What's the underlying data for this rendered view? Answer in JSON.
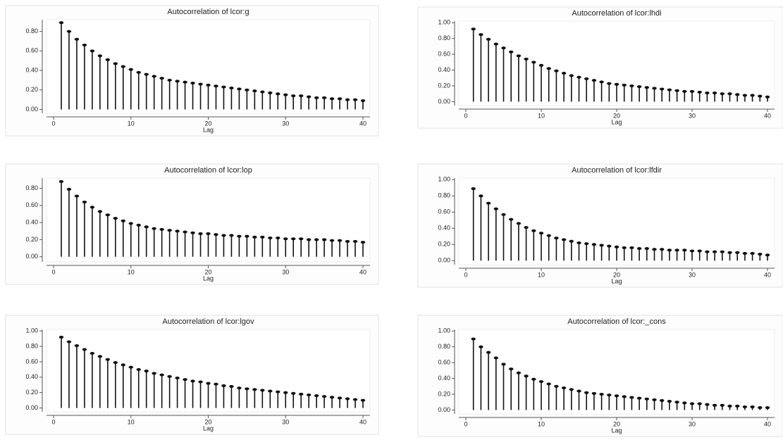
{
  "chart_data": [
    {
      "type": "stem",
      "title": "Autocorrelation of lcor:g",
      "xlabel": "Lag",
      "x": [
        1,
        2,
        3,
        4,
        5,
        6,
        7,
        8,
        9,
        10,
        11,
        12,
        13,
        14,
        15,
        16,
        17,
        18,
        19,
        20,
        21,
        22,
        23,
        24,
        25,
        26,
        27,
        28,
        29,
        30,
        31,
        32,
        33,
        34,
        35,
        36,
        37,
        38,
        39,
        40
      ],
      "values": [
        0.89,
        0.8,
        0.72,
        0.66,
        0.6,
        0.55,
        0.51,
        0.47,
        0.44,
        0.41,
        0.38,
        0.36,
        0.34,
        0.32,
        0.3,
        0.29,
        0.28,
        0.27,
        0.26,
        0.25,
        0.24,
        0.23,
        0.22,
        0.21,
        0.2,
        0.19,
        0.18,
        0.17,
        0.16,
        0.15,
        0.14,
        0.14,
        0.13,
        0.12,
        0.12,
        0.11,
        0.11,
        0.1,
        0.1,
        0.09
      ],
      "xlim": [
        0,
        40
      ],
      "xticks": [
        0,
        10,
        20,
        30,
        40
      ],
      "ylim": [
        -0.04,
        0.92
      ],
      "yticks": [
        {
          "value": 0,
          "label": "0.00"
        },
        {
          "value": 0.2,
          "label": "0.20"
        },
        {
          "value": 0.4,
          "label": "0.40"
        },
        {
          "value": 0.6,
          "label": "0.60"
        },
        {
          "value": 0.8,
          "label": "0.80"
        }
      ],
      "color": "#111111"
    },
    {
      "type": "stem",
      "title": "Autocorrelation of lcor:lhdi",
      "xlabel": "Lag",
      "x": [
        1,
        2,
        3,
        4,
        5,
        6,
        7,
        8,
        9,
        10,
        11,
        12,
        13,
        14,
        15,
        16,
        17,
        18,
        19,
        20,
        21,
        22,
        23,
        24,
        25,
        26,
        27,
        28,
        29,
        30,
        31,
        32,
        33,
        34,
        35,
        36,
        37,
        38,
        39,
        40
      ],
      "values": [
        0.92,
        0.85,
        0.79,
        0.73,
        0.68,
        0.63,
        0.58,
        0.54,
        0.5,
        0.46,
        0.42,
        0.39,
        0.36,
        0.33,
        0.31,
        0.29,
        0.27,
        0.25,
        0.23,
        0.22,
        0.21,
        0.2,
        0.19,
        0.18,
        0.17,
        0.16,
        0.15,
        0.14,
        0.13,
        0.13,
        0.12,
        0.11,
        0.11,
        0.1,
        0.1,
        0.09,
        0.08,
        0.08,
        0.07,
        0.06
      ],
      "xlim": [
        0,
        40
      ],
      "xticks": [
        0,
        10,
        20,
        30,
        40
      ],
      "ylim": [
        -0.05,
        1.02
      ],
      "yticks": [
        {
          "value": 0,
          "label": "0.00"
        },
        {
          "value": 0.2,
          "label": "0.20"
        },
        {
          "value": 0.4,
          "label": "0.40"
        },
        {
          "value": 0.6,
          "label": "0.60"
        },
        {
          "value": 0.8,
          "label": "0.80"
        },
        {
          "value": 1,
          "label": "1.00"
        }
      ],
      "color": "#111111"
    },
    {
      "type": "stem",
      "title": "Autocorrelation of lcor:lop",
      "xlabel": "Lag",
      "x": [
        1,
        2,
        3,
        4,
        5,
        6,
        7,
        8,
        9,
        10,
        11,
        12,
        13,
        14,
        15,
        16,
        17,
        18,
        19,
        20,
        21,
        22,
        23,
        24,
        25,
        26,
        27,
        28,
        29,
        30,
        31,
        32,
        33,
        34,
        35,
        36,
        37,
        38,
        39,
        40
      ],
      "values": [
        0.88,
        0.79,
        0.71,
        0.64,
        0.58,
        0.53,
        0.49,
        0.45,
        0.42,
        0.39,
        0.37,
        0.35,
        0.33,
        0.32,
        0.31,
        0.3,
        0.29,
        0.28,
        0.27,
        0.27,
        0.26,
        0.25,
        0.25,
        0.24,
        0.24,
        0.23,
        0.23,
        0.22,
        0.22,
        0.21,
        0.21,
        0.21,
        0.2,
        0.2,
        0.2,
        0.19,
        0.19,
        0.18,
        0.18,
        0.17
      ],
      "xlim": [
        0,
        40
      ],
      "xticks": [
        0,
        10,
        20,
        30,
        40
      ],
      "ylim": [
        -0.06,
        0.92
      ],
      "yticks": [
        {
          "value": 0,
          "label": "0.00"
        },
        {
          "value": 0.2,
          "label": "0.20"
        },
        {
          "value": 0.4,
          "label": "0.40"
        },
        {
          "value": 0.6,
          "label": "0.60"
        },
        {
          "value": 0.8,
          "label": "0.80"
        }
      ],
      "color": "#111111"
    },
    {
      "type": "stem",
      "title": "Autocorrelation of lcor:lfdir",
      "xlabel": "Lag",
      "x": [
        1,
        2,
        3,
        4,
        5,
        6,
        7,
        8,
        9,
        10,
        11,
        12,
        13,
        14,
        15,
        16,
        17,
        18,
        19,
        20,
        21,
        22,
        23,
        24,
        25,
        26,
        27,
        28,
        29,
        30,
        31,
        32,
        33,
        34,
        35,
        36,
        37,
        38,
        39,
        40
      ],
      "values": [
        0.89,
        0.8,
        0.71,
        0.64,
        0.57,
        0.51,
        0.46,
        0.41,
        0.37,
        0.34,
        0.31,
        0.28,
        0.26,
        0.24,
        0.22,
        0.21,
        0.2,
        0.19,
        0.18,
        0.17,
        0.16,
        0.16,
        0.15,
        0.15,
        0.14,
        0.14,
        0.13,
        0.13,
        0.13,
        0.12,
        0.12,
        0.11,
        0.11,
        0.11,
        0.1,
        0.1,
        0.09,
        0.09,
        0.08,
        0.07
      ],
      "xlim": [
        0,
        40
      ],
      "xticks": [
        0,
        10,
        20,
        30,
        40
      ],
      "ylim": [
        -0.05,
        1.02
      ],
      "yticks": [
        {
          "value": 0,
          "label": "0.00"
        },
        {
          "value": 0.2,
          "label": "0.20"
        },
        {
          "value": 0.4,
          "label": "0.40"
        },
        {
          "value": 0.6,
          "label": "0.60"
        },
        {
          "value": 0.8,
          "label": "0.80"
        },
        {
          "value": 1,
          "label": "1.00"
        }
      ],
      "color": "#111111"
    },
    {
      "type": "stem",
      "title": "Autocorrelation of lcor:lgov",
      "xlabel": "Lag",
      "x": [
        1,
        2,
        3,
        4,
        5,
        6,
        7,
        8,
        9,
        10,
        11,
        12,
        13,
        14,
        15,
        16,
        17,
        18,
        19,
        20,
        21,
        22,
        23,
        24,
        25,
        26,
        27,
        28,
        29,
        30,
        31,
        32,
        33,
        34,
        35,
        36,
        37,
        38,
        39,
        40
      ],
      "values": [
        0.92,
        0.86,
        0.81,
        0.76,
        0.71,
        0.67,
        0.63,
        0.59,
        0.56,
        0.53,
        0.5,
        0.48,
        0.45,
        0.43,
        0.41,
        0.39,
        0.37,
        0.35,
        0.34,
        0.32,
        0.31,
        0.29,
        0.28,
        0.26,
        0.25,
        0.24,
        0.23,
        0.22,
        0.21,
        0.2,
        0.19,
        0.18,
        0.17,
        0.16,
        0.15,
        0.14,
        0.13,
        0.12,
        0.11,
        0.1
      ],
      "xlim": [
        0,
        40
      ],
      "xticks": [
        0,
        10,
        20,
        30,
        40
      ],
      "ylim": [
        -0.05,
        1.02
      ],
      "yticks": [
        {
          "value": 0,
          "label": "0.00"
        },
        {
          "value": 0.2,
          "label": "0.20"
        },
        {
          "value": 0.4,
          "label": "0.40"
        },
        {
          "value": 0.6,
          "label": "0.60"
        },
        {
          "value": 0.8,
          "label": "0.80"
        },
        {
          "value": 1,
          "label": "1.00"
        }
      ],
      "color": "#111111"
    },
    {
      "type": "stem",
      "title": "Autocorrelation of lcor:_cons",
      "xlabel": "Lag",
      "x": [
        1,
        2,
        3,
        4,
        5,
        6,
        7,
        8,
        9,
        10,
        11,
        12,
        13,
        14,
        15,
        16,
        17,
        18,
        19,
        20,
        21,
        22,
        23,
        24,
        25,
        26,
        27,
        28,
        29,
        30,
        31,
        32,
        33,
        34,
        35,
        36,
        37,
        38,
        39,
        40
      ],
      "values": [
        0.9,
        0.8,
        0.73,
        0.66,
        0.58,
        0.52,
        0.47,
        0.43,
        0.39,
        0.36,
        0.33,
        0.3,
        0.28,
        0.26,
        0.24,
        0.22,
        0.21,
        0.2,
        0.19,
        0.18,
        0.17,
        0.16,
        0.15,
        0.14,
        0.13,
        0.12,
        0.11,
        0.1,
        0.09,
        0.08,
        0.08,
        0.07,
        0.06,
        0.06,
        0.05,
        0.05,
        0.04,
        0.04,
        0.03,
        0.03
      ],
      "xlim": [
        0,
        40
      ],
      "xticks": [
        0,
        10,
        20,
        30,
        40
      ],
      "ylim": [
        -0.05,
        1.02
      ],
      "yticks": [
        {
          "value": 0,
          "label": "0.00"
        },
        {
          "value": 0.2,
          "label": "0.20"
        },
        {
          "value": 0.4,
          "label": "0.40"
        },
        {
          "value": 0.6,
          "label": "0.60"
        },
        {
          "value": 0.8,
          "label": "0.80"
        },
        {
          "value": 1,
          "label": "1.00"
        }
      ],
      "color": "#111111"
    }
  ]
}
